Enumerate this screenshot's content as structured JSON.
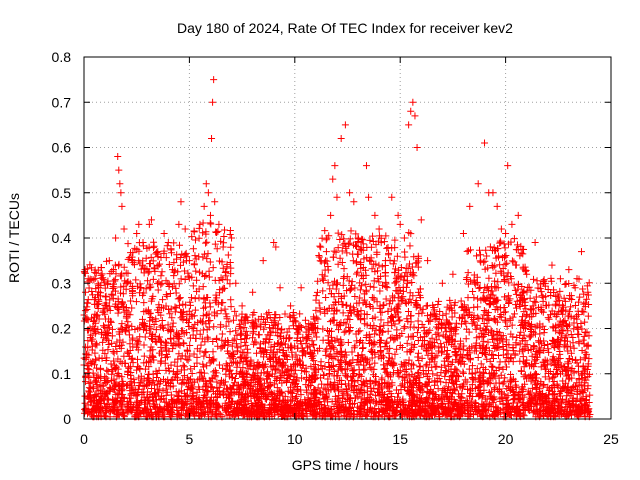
{
  "chart_data": {
    "type": "scatter",
    "title": "Day 180 of 2024, Rate Of TEC Index for receiver kev2",
    "xlabel": "GPS time / hours",
    "ylabel": "ROTI / TECUs",
    "xlim": [
      0,
      25
    ],
    "ylim": [
      0,
      0.8
    ],
    "xticks": [
      "0",
      "5",
      "10",
      "15",
      "20",
      "25"
    ],
    "yticks": [
      "0",
      "0.1",
      "0.2",
      "0.3",
      "0.4",
      "0.5",
      "0.6",
      "0.7",
      "0.8"
    ],
    "grid": true,
    "marker": "plus",
    "color": "#ff0000",
    "series": [
      {
        "x_range": [
          0,
          24
        ],
        "points": [
          [
            0.05,
            0.33
          ],
          [
            0.1,
            0.22
          ],
          [
            0.2,
            0.31
          ],
          [
            0.3,
            0.18
          ],
          [
            0.5,
            0.12
          ],
          [
            0.7,
            0.26
          ],
          [
            1.0,
            0.08
          ],
          [
            1.2,
            0.35
          ],
          [
            1.5,
            0.4
          ],
          [
            1.6,
            0.58
          ],
          [
            1.65,
            0.55
          ],
          [
            1.7,
            0.52
          ],
          [
            1.75,
            0.5
          ],
          [
            1.8,
            0.47
          ],
          [
            1.9,
            0.42
          ],
          [
            2.0,
            0.3
          ],
          [
            2.3,
            0.35
          ],
          [
            2.5,
            0.41
          ],
          [
            2.6,
            0.43
          ],
          [
            2.8,
            0.39
          ],
          [
            3.0,
            0.02
          ],
          [
            3.1,
            0.43
          ],
          [
            3.2,
            0.44
          ],
          [
            3.5,
            0.37
          ],
          [
            3.8,
            0.41
          ],
          [
            4.0,
            0.39
          ],
          [
            4.2,
            0.33
          ],
          [
            4.5,
            0.43
          ],
          [
            4.6,
            0.48
          ],
          [
            4.8,
            0.42
          ],
          [
            5.0,
            0.35
          ],
          [
            5.2,
            0.2
          ],
          [
            5.5,
            0.43
          ],
          [
            5.7,
            0.47
          ],
          [
            5.8,
            0.52
          ],
          [
            5.9,
            0.5
          ],
          [
            6.0,
            0.45
          ],
          [
            6.05,
            0.62
          ],
          [
            6.1,
            0.7
          ],
          [
            6.15,
            0.75
          ],
          [
            6.2,
            0.48
          ],
          [
            6.4,
            0.43
          ],
          [
            6.6,
            0.38
          ],
          [
            7.0,
            0.4
          ],
          [
            7.2,
            0.3
          ],
          [
            7.5,
            0.25
          ],
          [
            8.0,
            0.28
          ],
          [
            8.5,
            0.35
          ],
          [
            9.0,
            0.39
          ],
          [
            9.1,
            0.38
          ],
          [
            9.3,
            0.29
          ],
          [
            9.8,
            0.25
          ],
          [
            10.3,
            0.29
          ],
          [
            11.0,
            0.24
          ],
          [
            11.5,
            0.37
          ],
          [
            11.7,
            0.45
          ],
          [
            11.8,
            0.53
          ],
          [
            11.9,
            0.56
          ],
          [
            12.0,
            0.49
          ],
          [
            12.2,
            0.62
          ],
          [
            12.4,
            0.65
          ],
          [
            12.6,
            0.5
          ],
          [
            12.8,
            0.48
          ],
          [
            13.0,
            0.4
          ],
          [
            13.4,
            0.56
          ],
          [
            13.5,
            0.49
          ],
          [
            13.8,
            0.45
          ],
          [
            14.0,
            0.42
          ],
          [
            14.3,
            0.35
          ],
          [
            14.6,
            0.49
          ],
          [
            14.9,
            0.45
          ],
          [
            15.0,
            0.43
          ],
          [
            15.2,
            0.4
          ],
          [
            15.4,
            0.65
          ],
          [
            15.5,
            0.68
          ],
          [
            15.6,
            0.7
          ],
          [
            15.7,
            0.67
          ],
          [
            15.8,
            0.6
          ],
          [
            16.0,
            0.44
          ],
          [
            16.3,
            0.35
          ],
          [
            17.0,
            0.3
          ],
          [
            17.5,
            0.32
          ],
          [
            18.0,
            0.41
          ],
          [
            18.3,
            0.47
          ],
          [
            18.7,
            0.52
          ],
          [
            19.0,
            0.61
          ],
          [
            19.2,
            0.5
          ],
          [
            19.4,
            0.5
          ],
          [
            19.6,
            0.47
          ],
          [
            19.8,
            0.42
          ],
          [
            20.0,
            0.41
          ],
          [
            20.1,
            0.56
          ],
          [
            20.3,
            0.43
          ],
          [
            20.6,
            0.45
          ],
          [
            21.0,
            0.32
          ],
          [
            21.4,
            0.39
          ],
          [
            21.8,
            0.3
          ],
          [
            22.2,
            0.34
          ],
          [
            22.6,
            0.31
          ],
          [
            23.0,
            0.33
          ],
          [
            23.3,
            0.29
          ],
          [
            23.6,
            0.37
          ],
          [
            23.9,
            0.28
          ],
          [
            24.0,
            0.01
          ]
        ]
      }
    ]
  }
}
